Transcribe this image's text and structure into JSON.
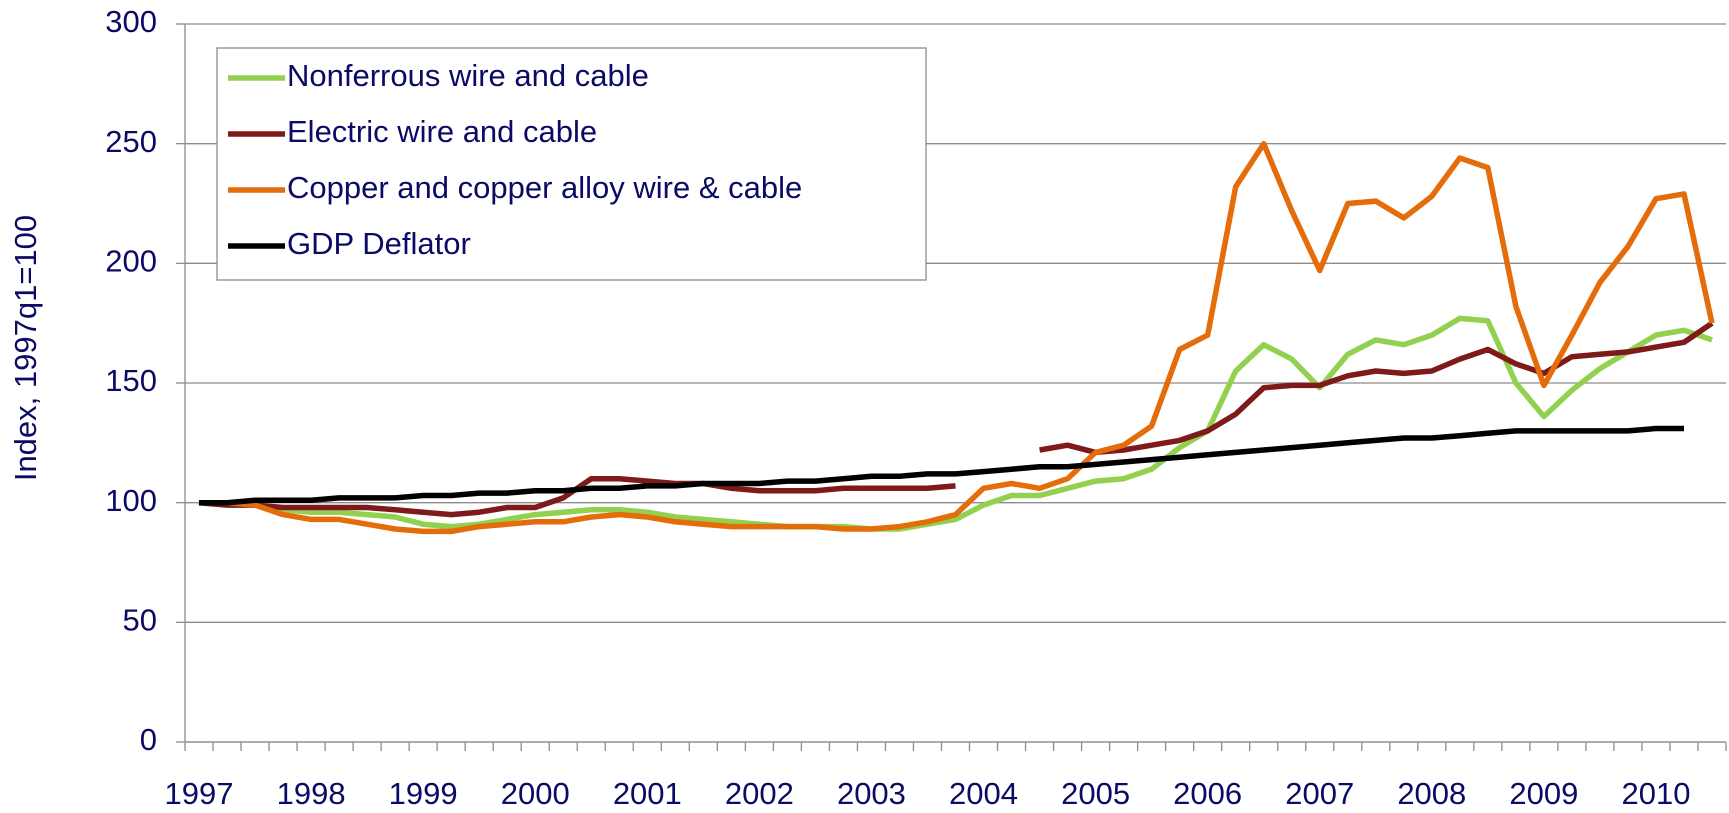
{
  "chart_data": {
    "type": "line",
    "y_label": "Index, 1997q1=100",
    "categories": [
      "1997",
      null,
      null,
      null,
      "1998",
      null,
      null,
      null,
      "1999",
      null,
      null,
      null,
      "2000",
      null,
      null,
      null,
      "2001",
      null,
      null,
      null,
      "2002",
      null,
      null,
      null,
      "2003",
      null,
      null,
      null,
      "2004",
      null,
      null,
      null,
      "2005",
      null,
      null,
      null,
      "2006",
      null,
      null,
      null,
      "2007",
      null,
      null,
      null,
      "2008",
      null,
      null,
      null,
      "2009",
      null,
      null,
      null,
      "2010",
      null,
      null
    ],
    "series": [
      {
        "name": "Nonferrous wire and cable",
        "color": "#92d050",
        "values": [
          100,
          100,
          99,
          97,
          96,
          96,
          95,
          94,
          91,
          90,
          91,
          93,
          95,
          96,
          97,
          97,
          96,
          94,
          93,
          92,
          91,
          90,
          90,
          90,
          89,
          89,
          91,
          93,
          99,
          103,
          103,
          106,
          109,
          110,
          114,
          123,
          130,
          155,
          166,
          160,
          148,
          162,
          168,
          166,
          170,
          177,
          176,
          150,
          136,
          147,
          156,
          163,
          170,
          172,
          168
        ]
      },
      {
        "name": "Electric wire and cable",
        "color": "#7f1a1a",
        "values": [
          100,
          99,
          99,
          98,
          98,
          98,
          98,
          97,
          96,
          95,
          96,
          98,
          98,
          102,
          110,
          110,
          109,
          108,
          108,
          106,
          105,
          105,
          105,
          106,
          106,
          106,
          106,
          107,
          null,
          null,
          122,
          124,
          121,
          122,
          124,
          126,
          130,
          137,
          148,
          149,
          149,
          153,
          155,
          154,
          155,
          160,
          164,
          158,
          154,
          161,
          162,
          163,
          165,
          167,
          175
        ]
      },
      {
        "name": "Copper and copper alloy wire & cable",
        "color": "#e46c0a",
        "values": [
          100,
          100,
          99,
          95,
          93,
          93,
          91,
          89,
          88,
          88,
          90,
          91,
          92,
          92,
          94,
          95,
          94,
          92,
          91,
          90,
          90,
          90,
          90,
          89,
          89,
          90,
          92,
          95,
          106,
          108,
          106,
          110,
          121,
          124,
          132,
          164,
          170,
          232,
          250,
          222,
          197,
          225,
          226,
          219,
          228,
          244,
          240,
          182,
          149,
          170,
          192,
          207,
          227,
          229,
          175
        ]
      },
      {
        "name": "GDP Deflator",
        "color": "#000000",
        "values": [
          100,
          100,
          101,
          101,
          101,
          102,
          102,
          102,
          103,
          103,
          104,
          104,
          105,
          105,
          106,
          106,
          107,
          107,
          108,
          108,
          108,
          109,
          109,
          110,
          111,
          111,
          112,
          112,
          113,
          114,
          115,
          115,
          116,
          117,
          118,
          119,
          120,
          121,
          122,
          123,
          124,
          125,
          126,
          127,
          127,
          128,
          129,
          130,
          130,
          130,
          130,
          130,
          131,
          131,
          null
        ]
      }
    ],
    "ylim": [
      0,
      300
    ],
    "yticks": [
      0,
      50,
      100,
      150,
      200,
      250,
      300
    ],
    "grid": true,
    "legend": "upper left"
  }
}
